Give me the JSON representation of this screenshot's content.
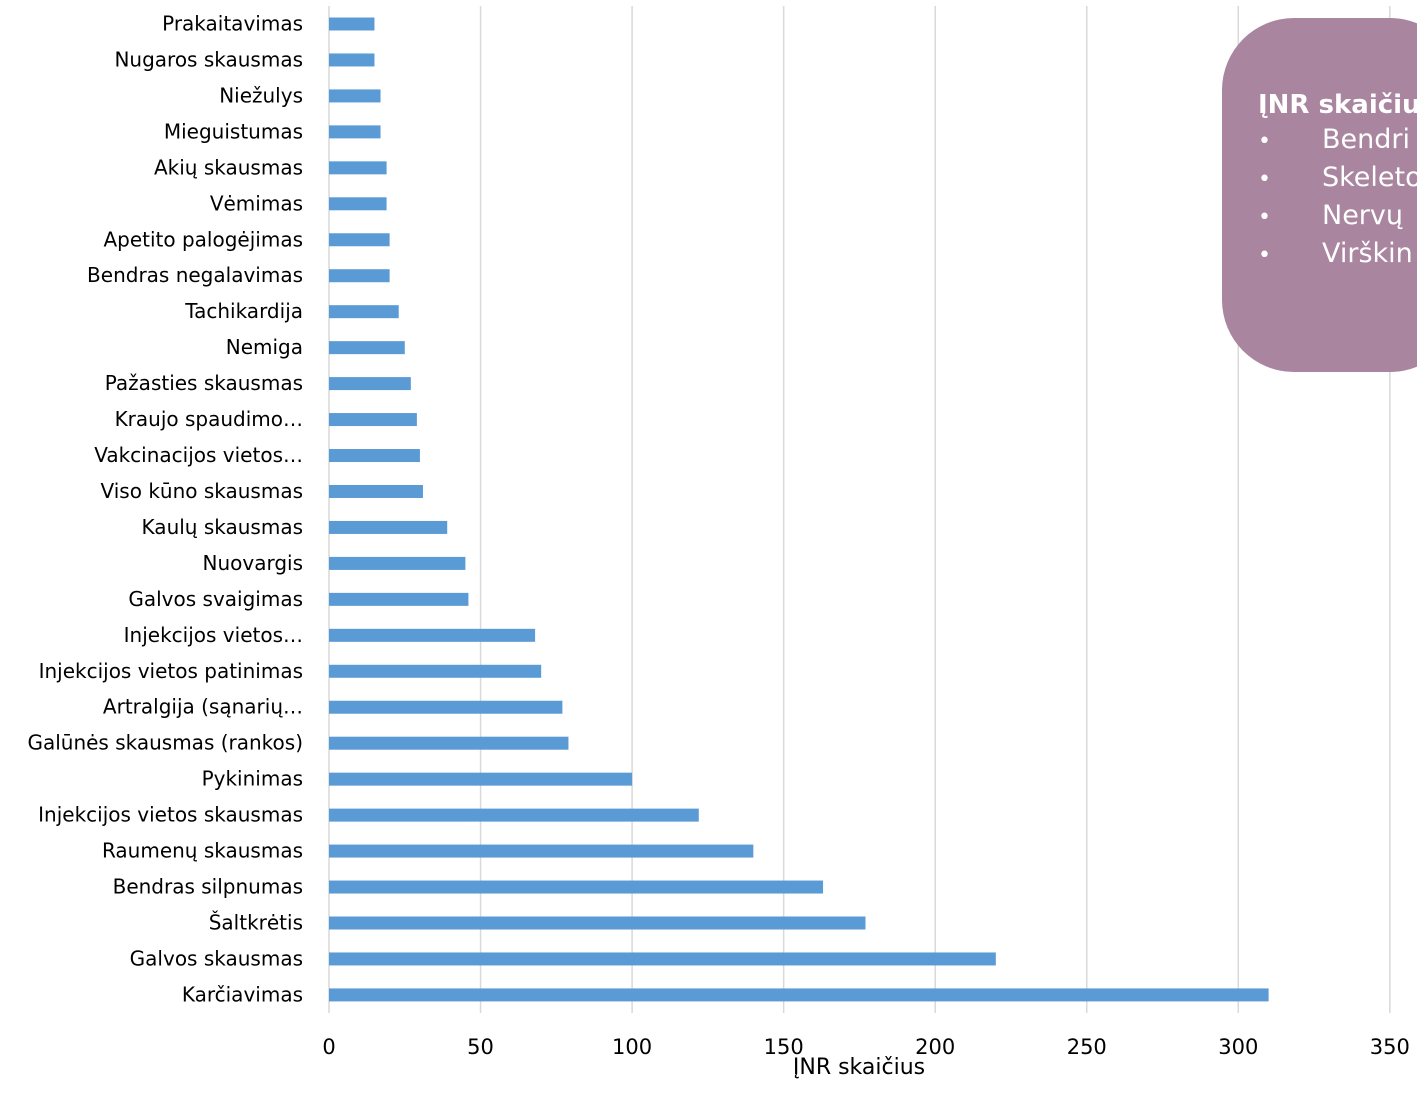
{
  "chart_data": {
    "type": "bar",
    "orientation": "horizontal",
    "categories": [
      "Prakaitavimas",
      "Nugaros skausmas",
      "Niežulys",
      "Mieguistumas",
      "Akių skausmas",
      "Vėmimas",
      "Apetito palogėjimas",
      "Bendras negalavimas",
      "Tachikardija",
      "Nemiga",
      "Pažasties skausmas",
      "Kraujo spaudimo…",
      "Vakcinacijos vietos…",
      "Viso kūno skausmas",
      "Kaulų skausmas",
      "Nuovargis",
      "Galvos svaigimas",
      "Injekcijos vietos…",
      "Injekcijos vietos patinimas",
      "Artralgija (sąnarių…",
      "Galūnės skausmas (rankos)",
      "Pykinimas",
      "Injekcijos vietos skausmas",
      "Raumenų skausmas",
      "Bendras silpnumas",
      "Šaltkrėtis",
      "Galvos skausmas",
      "Karčiavimas"
    ],
    "values": [
      15,
      15,
      17,
      17,
      19,
      19,
      20,
      20,
      23,
      25,
      27,
      29,
      30,
      31,
      39,
      45,
      46,
      68,
      70,
      77,
      79,
      100,
      122,
      140,
      163,
      177,
      220,
      310
    ],
    "xlabel": "ĮNR skaičius",
    "ylabel": "",
    "xlim": [
      0,
      350
    ],
    "xticks": [
      "0",
      "50",
      "100",
      "150",
      "200",
      "250",
      "300",
      "350"
    ],
    "grid": "vertical",
    "bar_color": "#5b9bd5"
  },
  "callout": {
    "title": "ĮNR skaičiu",
    "bullet": "•",
    "items": [
      "Bendri",
      "Skeleto",
      "Nervų",
      "Virškin"
    ]
  },
  "colors": {
    "bar": "#5b9bd5",
    "grid": "#d9d9d9",
    "axis_text": "#000000",
    "callout_bg": "#a9859f",
    "callout_text": "#ffffff"
  }
}
